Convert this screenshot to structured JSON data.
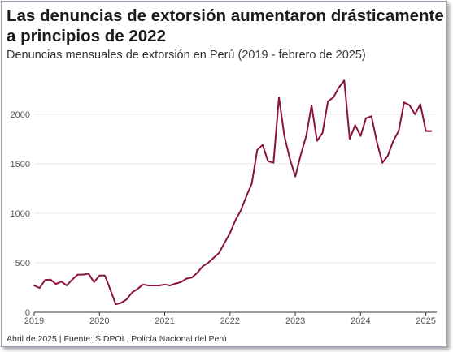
{
  "header": {
    "title": "Las denuncias de extorsión aumentaron drásticamente a principios de 2022",
    "subtitle": "Denuncias mensuales de extorsión en Perú (2019 - febrero de 2025)"
  },
  "footer": {
    "source": "Abril de 2025 | Fuente: SIDPOL, Policía Nacional del Perú"
  },
  "colors": {
    "line": "#8b1538",
    "grid": "#e6e6e6",
    "text": "#1b1b1b"
  },
  "chart_data": {
    "type": "line",
    "title": "Las denuncias de extorsión aumentaron drásticamente a principios de 2022",
    "subtitle": "Denuncias mensuales de extorsión en Perú (2019 - febrero de 2025)",
    "xlabel": "",
    "ylabel": "",
    "x_ticks": [
      "2019",
      "2020",
      "2021",
      "2022",
      "2023",
      "2024",
      "2025"
    ],
    "y_ticks": [
      0,
      500,
      1000,
      1500,
      2000
    ],
    "ylim": [
      0,
      2400
    ],
    "xlim": [
      "2019-01",
      "2025-03"
    ],
    "grid": "horizontal",
    "series": [
      {
        "name": "",
        "x": [
          "2019-01",
          "2019-02",
          "2019-03",
          "2019-04",
          "2019-05",
          "2019-06",
          "2019-07",
          "2019-08",
          "2019-09",
          "2019-10",
          "2019-11",
          "2019-12",
          "2020-01",
          "2020-02",
          "2020-03",
          "2020-04",
          "2020-05",
          "2020-06",
          "2020-07",
          "2020-08",
          "2020-09",
          "2020-10",
          "2020-11",
          "2020-12",
          "2021-01",
          "2021-02",
          "2021-03",
          "2021-04",
          "2021-05",
          "2021-06",
          "2021-07",
          "2021-08",
          "2021-09",
          "2021-10",
          "2021-11",
          "2021-12",
          "2022-01",
          "2022-02",
          "2022-03",
          "2022-04",
          "2022-05",
          "2022-06",
          "2022-07",
          "2022-08",
          "2022-09",
          "2022-10",
          "2022-11",
          "2022-12",
          "2023-01",
          "2023-02",
          "2023-03",
          "2023-04",
          "2023-05",
          "2023-06",
          "2023-07",
          "2023-08",
          "2023-09",
          "2023-10",
          "2023-11",
          "2023-12",
          "2024-01",
          "2024-02",
          "2024-03",
          "2024-04",
          "2024-05",
          "2024-06",
          "2024-07",
          "2024-08",
          "2024-09",
          "2024-10",
          "2024-11",
          "2024-12",
          "2025-01",
          "2025-02"
        ],
        "values": [
          270,
          245,
          325,
          330,
          285,
          310,
          270,
          330,
          380,
          380,
          390,
          305,
          370,
          370,
          230,
          80,
          95,
          130,
          200,
          235,
          280,
          270,
          270,
          270,
          280,
          270,
          290,
          305,
          340,
          350,
          400,
          465,
          500,
          550,
          600,
          700,
          800,
          930,
          1030,
          1170,
          1300,
          1640,
          1690,
          1525,
          1510,
          2170,
          1780,
          1550,
          1370,
          1590,
          1780,
          2090,
          1730,
          1810,
          2130,
          2170,
          2270,
          2340,
          1750,
          1890,
          1780,
          1960,
          1980,
          1720,
          1510,
          1580,
          1730,
          1830,
          2120,
          2090,
          2000,
          2100,
          1830,
          1830
        ]
      }
    ]
  }
}
